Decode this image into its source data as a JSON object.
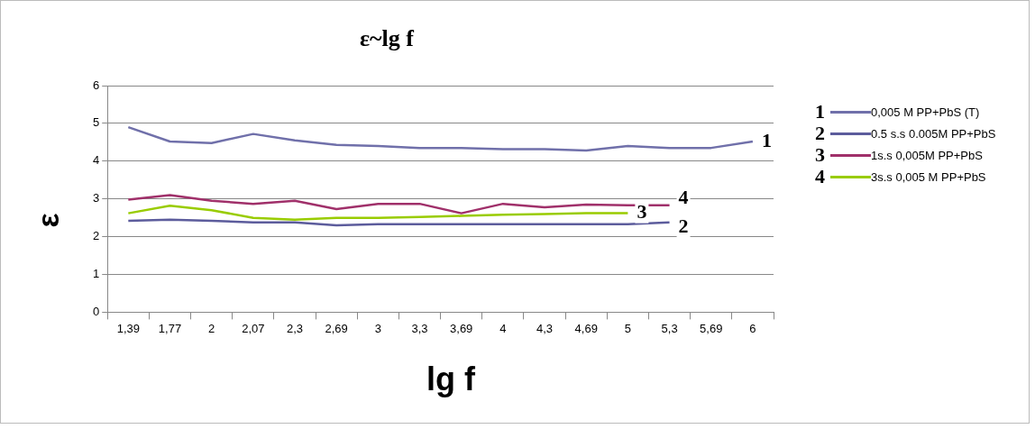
{
  "chart_data": {
    "type": "line",
    "title": "ε~lg f",
    "xlabel": "lg f",
    "ylabel": "ε",
    "categories": [
      "1,39",
      "1,77",
      "2",
      "2,07",
      "2,3",
      "2,69",
      "3",
      "3,3",
      "3,69",
      "4",
      "4,3",
      "4,69",
      "5",
      "5,3",
      "5,69",
      "6"
    ],
    "series": [
      {
        "name": "0,005 M PP+PbS (T)",
        "color": "#7070aa",
        "values": [
          4.9,
          4.52,
          4.48,
          4.72,
          4.55,
          4.43,
          4.4,
          4.35,
          4.35,
          4.32,
          4.32,
          4.28,
          4.4,
          4.35,
          4.35,
          4.52
        ]
      },
      {
        "name": "0.5 s.s 0.005M PP+PbS",
        "color": "#5c5c9c",
        "values": [
          2.42,
          2.45,
          2.42,
          2.38,
          2.38,
          2.3,
          2.33,
          2.33,
          2.33,
          2.33,
          2.33,
          2.33,
          2.33,
          2.38,
          null,
          null
        ]
      },
      {
        "name": "1s.s 0,005M PP+PbS",
        "color": "#a0306a",
        "values": [
          2.98,
          3.1,
          2.95,
          2.87,
          2.95,
          2.73,
          2.87,
          2.87,
          2.62,
          2.87,
          2.78,
          2.85,
          2.83,
          2.83,
          null,
          null
        ]
      },
      {
        "name": "3s.s 0,005 M PP+PbS",
        "color": "#99cc00",
        "values": [
          2.62,
          2.82,
          2.7,
          2.5,
          2.45,
          2.5,
          2.5,
          2.52,
          2.55,
          2.58,
          2.6,
          2.62,
          2.62,
          null,
          null,
          null
        ]
      }
    ],
    "annotations": [
      {
        "text": "1",
        "x": "6",
        "y": 4.52
      },
      {
        "text": "2",
        "x": "5,3",
        "y": 2.38
      },
      {
        "text": "3",
        "x": "5",
        "y": 2.62
      },
      {
        "text": "4",
        "x": "5,3",
        "y": 2.83
      }
    ],
    "ylim": [
      0,
      6
    ],
    "yticks": [
      0,
      1,
      2,
      3,
      4,
      5,
      6
    ],
    "grid": "y",
    "legend": "right",
    "marker": "none",
    "line_style": "solid"
  }
}
